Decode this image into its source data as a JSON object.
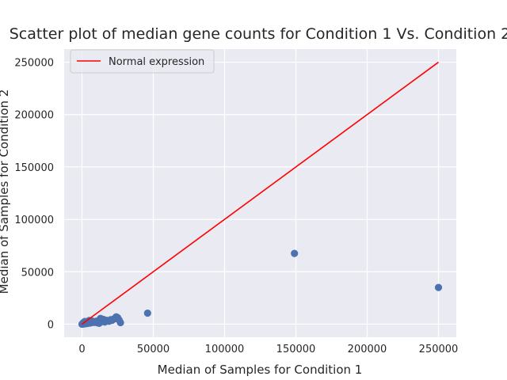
{
  "chart_data": {
    "type": "scatter",
    "title": "Scatter plot of median gene counts for Condition 1 Vs. Condition 2",
    "xlabel": "Median of Samples for Condition 1",
    "ylabel": "Median of Samples for Condition 2",
    "xlim": [
      -12500,
      262500
    ],
    "ylim": [
      -12500,
      262500
    ],
    "xticks": [
      0,
      50000,
      100000,
      150000,
      200000,
      250000
    ],
    "yticks": [
      0,
      50000,
      100000,
      150000,
      200000,
      250000
    ],
    "grid": true,
    "legend_position": "top-left",
    "colors": {
      "background": "#eaeaf2",
      "grid": "#ffffff",
      "points": "#4c72b0",
      "line": "#ff0000"
    },
    "series": [
      {
        "kind": "scatter",
        "x": [
          0,
          300,
          600,
          900,
          1200,
          1500,
          2000,
          2500,
          3000,
          3500,
          4000,
          4500,
          5000,
          5500,
          6000,
          6500,
          7000,
          7500,
          8000,
          9000,
          10000,
          11000,
          12000,
          13000,
          14000,
          15000,
          16000,
          17000,
          18000,
          19000,
          20000,
          21000,
          22000,
          23000,
          24000,
          25000,
          26000,
          27000,
          1000,
          2000,
          3000,
          5000,
          8000,
          12000,
          46000,
          149000,
          250000
        ],
        "y": [
          0,
          200,
          100,
          300,
          500,
          200,
          800,
          400,
          1200,
          600,
          1500,
          900,
          2000,
          1100,
          2500,
          1400,
          3000,
          1800,
          2200,
          1600,
          2800,
          1200,
          3500,
          5500,
          2500,
          4500,
          2000,
          3800,
          3200,
          2800,
          4200,
          3600,
          4800,
          5200,
          7000,
          6200,
          4000,
          1500,
          1500,
          2500,
          1000,
          3500,
          1800,
          800,
          10500,
          67500,
          35000
        ]
      },
      {
        "kind": "line",
        "name": "Normal expression",
        "x": [
          0,
          250000
        ],
        "y": [
          0,
          250000
        ]
      }
    ]
  }
}
